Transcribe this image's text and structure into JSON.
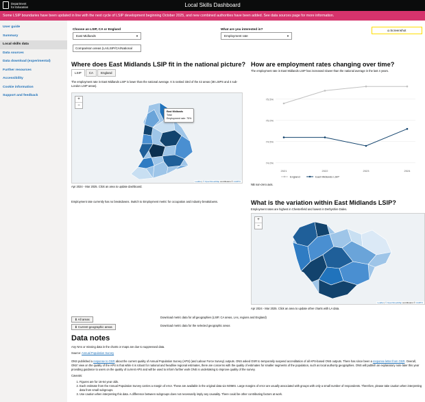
{
  "header": {
    "logo_line1": "Department",
    "logo_line2": "for Education",
    "title": "Local Skills Dashboard"
  },
  "banner": {
    "text": "Some LSIP boundaries have been updated in line with the next cycle of LSIP development beginning October 2025, and new combined authorities have been added. See data sources page for more information."
  },
  "sidebar": {
    "items": [
      {
        "label": "User guide"
      },
      {
        "label": "Summary"
      },
      {
        "label": "Local skills data"
      },
      {
        "label": "Data sources"
      },
      {
        "label": "Data download (experimental)"
      },
      {
        "label": "Further resources"
      },
      {
        "label": "Accessibility"
      },
      {
        "label": "Cookie information"
      },
      {
        "label": "Support and feedback"
      }
    ]
  },
  "controls": {
    "area_label": "Choose an LSIP, CA or England",
    "area_value": "East Midlands",
    "comparison_value": "Comparison areas (LA/LSIP/CA/National",
    "metric_label": "What are you interested in?",
    "metric_value": "Employment rate",
    "screenshot_label": "Screenshot"
  },
  "national": {
    "title": "Where does East Midlands LSIP fit in the national picture?",
    "tabs": [
      "LSIP",
      "CA",
      "England"
    ],
    "desc": "The employment rate in East Midlands LSIP is lower than the national average. It is ranked 33rd of the 42 areas (38 LSIPS and 4 sub-London LSIP areas).",
    "tooltip_title": "East Midlands",
    "tooltip_line1": "Total",
    "tooltip_line2": "Employment rate: 75%",
    "zoom_in": "+",
    "zoom_out": "−",
    "attrib_leaflet": "Leaflet",
    "attrib_sep": " | ",
    "attrib_osm": "© OpenStreetMap",
    "attrib_contrib": " contributors © ",
    "attrib_carto": "CARTO",
    "period": "Apr 2024 - Mar 2025. Click an area to update dashboard."
  },
  "trend": {
    "title": "How are employment rates changing over time?",
    "desc": "The employment rate in East Midlands LSIP has increased slower than the national average in the last 4 years.",
    "note": "NB non-zero axis."
  },
  "chart_data": {
    "type": "line",
    "x": [
      "2021",
      "2022",
      "2023",
      "2024"
    ],
    "series": [
      {
        "name": "England",
        "values": [
          75.4,
          75.7,
          75.8,
          75.8
        ],
        "color": "#c0c0c0"
      },
      {
        "name": "East Midlands LSIP",
        "values": [
          74.6,
          74.6,
          74.4,
          74.8
        ],
        "color": "#12436d"
      }
    ],
    "yticks": [
      "74.0%",
      "74.5%",
      "75.0%",
      "75.5%"
    ],
    "ylim": [
      73.9,
      75.9
    ]
  },
  "breakdown": {
    "text": "Employment rate currently has no breakdowns. Switch to Employment metric for occupation and industry breakdowns."
  },
  "variation": {
    "title": "What is the variation within East Midlands LSIP?",
    "desc": "Employment rates are highest in Chesterfield and lowest in Derbyshire Dales.",
    "period": "Apr 2024 - Mar 2025. Click an area to update other charts with LA data."
  },
  "downloads": {
    "all_button": "All areas",
    "all_desc": "Download metric data for all geographies (LSIP, CA areas, LAs, regions and England)",
    "current_button": "Current geographic areas",
    "current_desc": "Download metric data for the selected geographic areas"
  },
  "notes": {
    "title": "Data notes",
    "line1": "Any NAs or missing data in the charts or maps are due to suppressed data.",
    "source_prefix": "Source: ",
    "source_link": "Annual Population Survey",
    "p_a": "ONS published a ",
    "p_link1": "response to OSR",
    "p_b": " about the current quality of Annual Population Survey (APS) (and Labour Force Survey) outputs. ONS asked OSR to temporarily suspend accreditation of all APS-based ONS outputs. There has since been a ",
    "p_link2": "response letter from OSR",
    "p_c": ". Overall, ONS' view on the quality of the APS is that while it is robust for national and headline regional estimates, there are concerns with the quality of estimates for smaller segments of the population, such as local authority geographies. ONS will publish an explanatory note later this year providing guidance to users on the quality of current APS and will be used to inform further work ONS is undertaking to improve quality of the survey.",
    "caveats_label": "Caveats:",
    "caveats": [
      "Figures are for 16-64 year olds.",
      "Each estimate from the Annual Population Survey carries a margin of error. These are available in the original data via NOMIS. Large margins of error are usually associated with groups with only a small number of respondents. Therefore, please take caution when interpreting data from small subgroups.",
      "Use caution when interpreting this data. A difference between subgroups does not necessarily imply any causality. There could be other contributing factors at work."
    ]
  }
}
